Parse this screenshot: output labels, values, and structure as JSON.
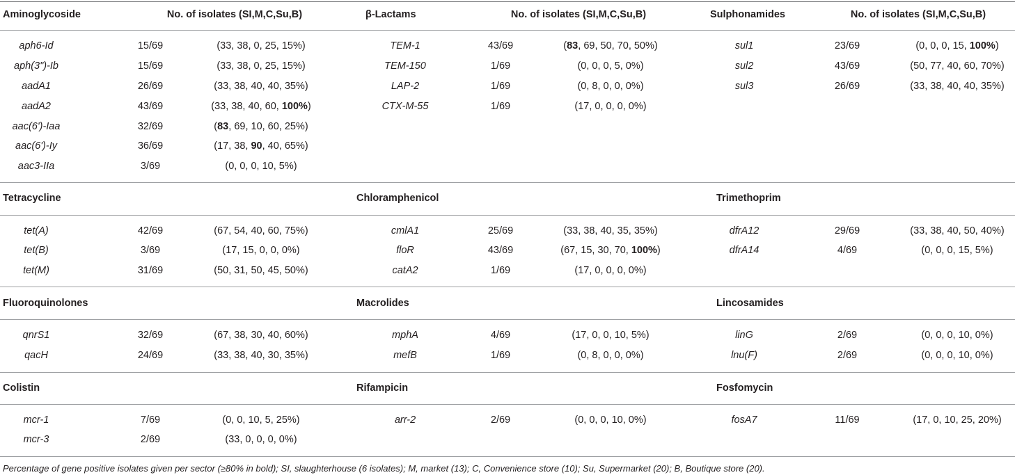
{
  "header": {
    "col1": "Aminoglycoside",
    "col2": "No. of isolates (SI,M,C,Su,B)",
    "col3": "β-Lactams",
    "col4": "No. of isolates (SI,M,C,Su,B)",
    "col5": "Sulphonamides",
    "col6": "No. of isolates (SI,M,C,Su,B)"
  },
  "aminoglycoside": [
    {
      "gene": "aph6-Id",
      "frac": "15/69",
      "pct": [
        "(33, 38, 0, 25, 15%)"
      ]
    },
    {
      "gene": "aph(3\")-Ib",
      "frac": "15/69",
      "pct": [
        "(33, 38, 0, 25, 15%)"
      ]
    },
    {
      "gene": "aadA1",
      "frac": "26/69",
      "pct": [
        "(33, 38, 40, 40, 35%)"
      ]
    },
    {
      "gene": "aadA2",
      "frac": "43/69",
      "pct": [
        "(33, 38, 40, 60, ",
        "100%",
        ")"
      ]
    },
    {
      "gene": "aac(6')-Iaa",
      "frac": "32/69",
      "pct": [
        "(",
        "83",
        ", 69, 10, 60, 25%)"
      ]
    },
    {
      "gene": "aac(6')-Iy",
      "frac": "36/69",
      "pct": [
        "(17, 38, ",
        "90",
        ", 40, 65%)"
      ]
    },
    {
      "gene": "aac3-IIa",
      "frac": "3/69",
      "pct": [
        "(0, 0, 0, 10, 5%)"
      ]
    }
  ],
  "lactams": [
    {
      "gene": "TEM-1",
      "frac": "43/69",
      "pct": [
        "(",
        "83",
        ", 69, 50, 70, 50%)"
      ]
    },
    {
      "gene": "TEM-150",
      "frac": "1/69",
      "pct": [
        "(0, 0, 0, 5, 0%)"
      ]
    },
    {
      "gene": "LAP-2",
      "frac": "1/69",
      "pct": [
        "(0, 8, 0, 0, 0%)"
      ]
    },
    {
      "gene": "CTX-M-55",
      "frac": "1/69",
      "pct": [
        "(17, 0, 0, 0, 0%)"
      ]
    }
  ],
  "sulphonamides": [
    {
      "gene": "sul1",
      "frac": "23/69",
      "pct": [
        "(0, 0, 0, 15, ",
        "100%",
        ")"
      ]
    },
    {
      "gene": "sul2",
      "frac": "43/69",
      "pct": [
        "(50, 77, 40, 60, 70%)"
      ]
    },
    {
      "gene": "sul3",
      "frac": "26/69",
      "pct": [
        "(33, 38, 40, 40, 35%)"
      ]
    }
  ],
  "sections": [
    {
      "titles": [
        "Tetracycline",
        "Chloramphenicol",
        "Trimethoprim"
      ],
      "cols": [
        [
          {
            "gene": "tet(A)",
            "frac": "42/69",
            "pct": [
              "(67, 54, 40, 60, 75%)"
            ]
          },
          {
            "gene": "tet(B)",
            "frac": "3/69",
            "pct": [
              "(17, 15, 0, 0, 0%)"
            ]
          },
          {
            "gene": "tet(M)",
            "frac": "31/69",
            "pct": [
              "(50, 31, 50, 45, 50%)"
            ]
          }
        ],
        [
          {
            "gene": "cmlA1",
            "frac": "25/69",
            "pct": [
              "(33, 38, 40, 35, 35%)"
            ]
          },
          {
            "gene": "floR",
            "frac": "43/69",
            "pct": [
              "(67, 15, 30, 70, ",
              "100%",
              ")"
            ]
          },
          {
            "gene": "catA2",
            "frac": "1/69",
            "pct": [
              "(17, 0, 0, 0, 0%)"
            ]
          }
        ],
        [
          {
            "gene": "dfrA12",
            "frac": "29/69",
            "pct": [
              "(33, 38, 40, 50, 40%)"
            ]
          },
          {
            "gene": "dfrA14",
            "frac": "4/69",
            "pct": [
              "(0, 0, 0, 15, 5%)"
            ]
          }
        ]
      ]
    },
    {
      "titles": [
        "Fluoroquinolones",
        "Macrolides",
        "Lincosamides"
      ],
      "cols": [
        [
          {
            "gene": "qnrS1",
            "frac": "32/69",
            "pct": [
              "(67, 38, 30, 40, 60%)"
            ]
          },
          {
            "gene": "qacH",
            "frac": "24/69",
            "pct": [
              "(33, 38, 40, 30, 35%)"
            ]
          }
        ],
        [
          {
            "gene": "mphA",
            "frac": "4/69",
            "pct": [
              "(17, 0, 0, 10, 5%)"
            ]
          },
          {
            "gene": "mefB",
            "frac": "1/69",
            "pct": [
              "(0, 8, 0, 0, 0%)"
            ]
          }
        ],
        [
          {
            "gene": "linG",
            "frac": "2/69",
            "pct": [
              "(0, 0, 0, 10, 0%)"
            ]
          },
          {
            "gene": "lnu(F)",
            "frac": "2/69",
            "pct": [
              "(0, 0, 0, 10, 0%)"
            ]
          }
        ]
      ]
    },
    {
      "titles": [
        "Colistin",
        "Rifampicin",
        "Fosfomycin"
      ],
      "cols": [
        [
          {
            "gene": "mcr-1",
            "frac": "7/69",
            "pct": [
              "(0, 0, 10, 5, 25%)"
            ]
          },
          {
            "gene": "mcr-3",
            "frac": "2/69",
            "pct": [
              "(33, 0, 0, 0, 0%)"
            ]
          }
        ],
        [
          {
            "gene": "arr-2",
            "frac": "2/69",
            "pct": [
              "(0, 0, 0, 10, 0%)"
            ]
          }
        ],
        [
          {
            "gene": "fosA7",
            "frac": "11/69",
            "pct": [
              "(17, 0, 10, 25, 20%)"
            ]
          }
        ]
      ]
    }
  ],
  "footnote": "Percentage of gene positive isolates given per sector (≥80% in bold); SI, slaughterhouse (6 isolates); M, market (13); C, Convenience store (10); Su, Supermarket (20); B, Boutique store (20)."
}
